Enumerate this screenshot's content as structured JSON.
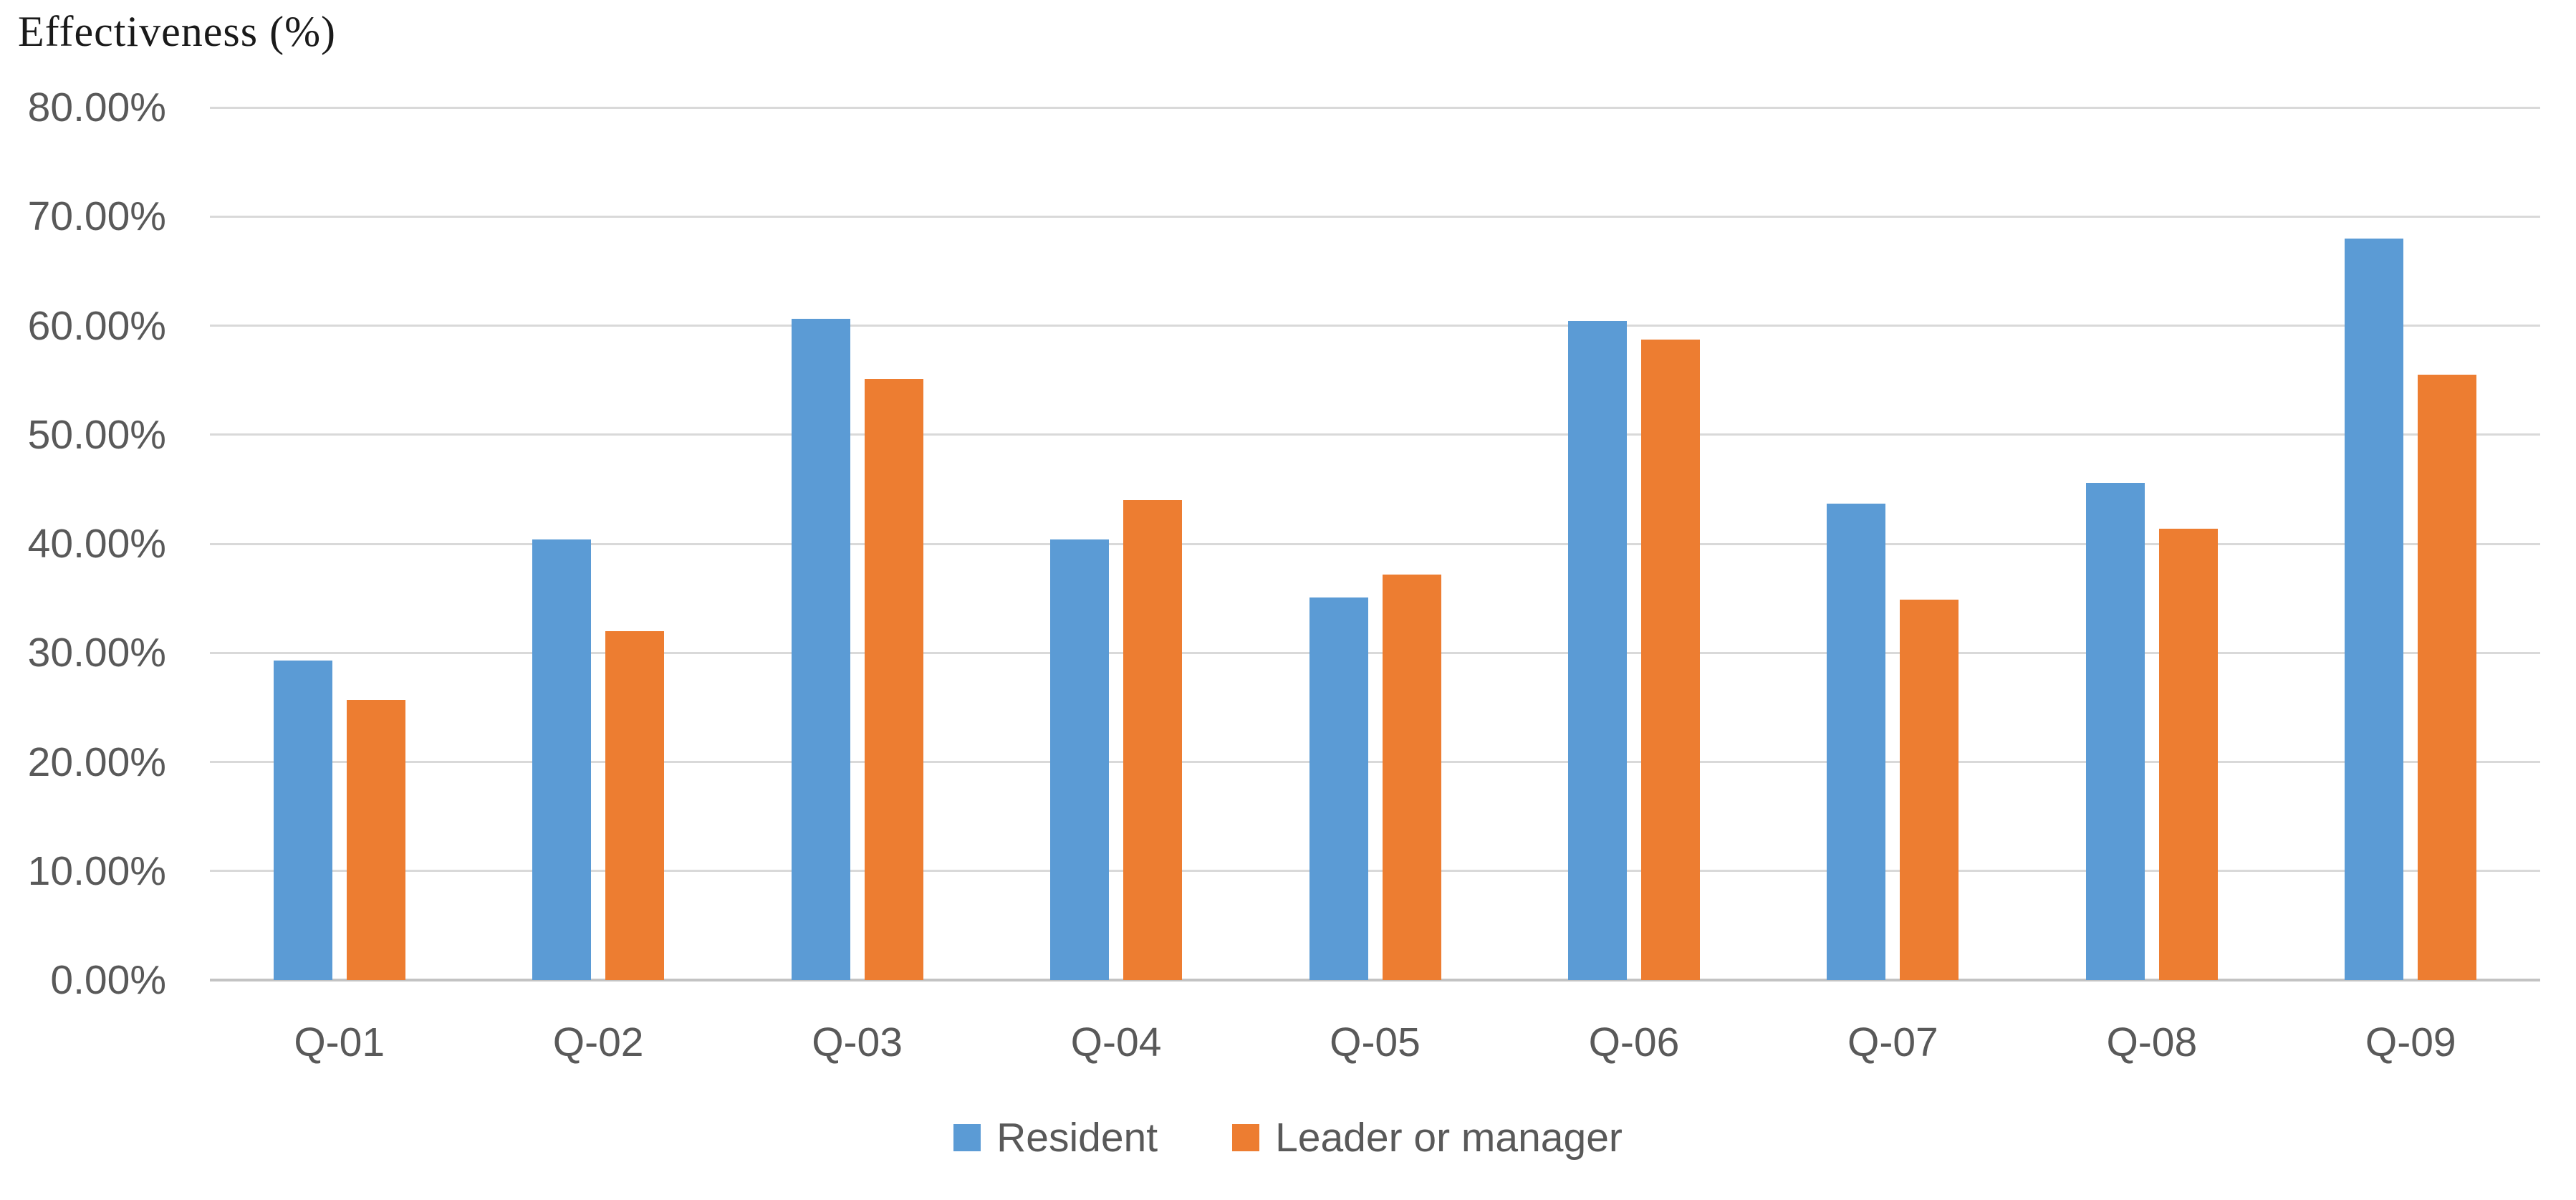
{
  "chart_data": {
    "type": "bar",
    "title": "Effectiveness (%)",
    "categories": [
      "Q-01",
      "Q-02",
      "Q-03",
      "Q-04",
      "Q-05",
      "Q-06",
      "Q-07",
      "Q-08",
      "Q-09"
    ],
    "series": [
      {
        "name": "Resident",
        "color": "#5B9BD5",
        "values": [
          29.3,
          40.4,
          60.6,
          40.4,
          35.1,
          60.4,
          43.7,
          45.6,
          68.0
        ]
      },
      {
        "name": "Leader or manager",
        "color": "#ED7D31",
        "values": [
          25.7,
          32.0,
          55.1,
          44.0,
          37.2,
          58.7,
          34.9,
          41.4,
          55.5
        ]
      }
    ],
    "xlabel": "",
    "ylabel": "Effectiveness (%)",
    "ylim": [
      0,
      80
    ],
    "y_tick_step": 10,
    "y_tick_labels": [
      "80.00%",
      "70.00%",
      "60.00%",
      "50.00%",
      "40.00%",
      "30.00%",
      "20.00%",
      "10.00%",
      "0.00%"
    ],
    "grid": true,
    "legend_position": "bottom",
    "colors": {
      "grid_line": "#D9D9D9",
      "axis_line": "#C3C3C3",
      "tick_text": "#595959",
      "title_text": "#1A1A1A"
    }
  }
}
